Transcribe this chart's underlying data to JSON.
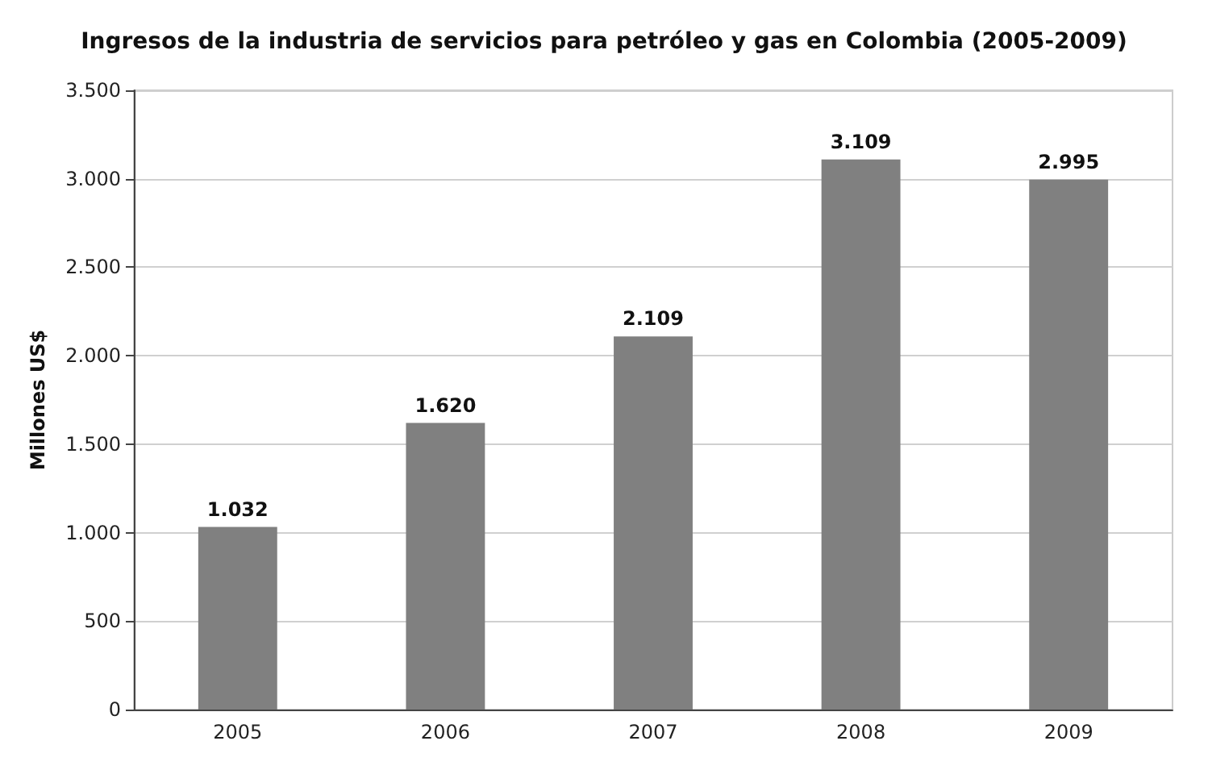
{
  "chart_data": {
    "type": "bar",
    "title": "Ingresos de la industria de servicios para petróleo y gas en Colombia (2005-2009)",
    "ylabel": "Millones US$",
    "categories": [
      "2005",
      "2006",
      "2007",
      "2008",
      "2009"
    ],
    "values": [
      1032,
      1620,
      2109,
      3109,
      2995
    ],
    "value_labels": [
      "1.032",
      "1.620",
      "2.109",
      "3.109",
      "2.995"
    ],
    "color": "#808080",
    "ylim": [
      0,
      3500
    ],
    "yticks": [
      {
        "value": 0,
        "label": "0"
      },
      {
        "value": 500,
        "label": "500"
      },
      {
        "value": 1000,
        "label": "1.000"
      },
      {
        "value": 1500,
        "label": "1.500"
      },
      {
        "value": 2000,
        "label": "2.000"
      },
      {
        "value": 2500,
        "label": "2.500"
      },
      {
        "value": 3000,
        "label": "3.000"
      },
      {
        "value": 3500,
        "label": "3.500"
      }
    ],
    "grid": "y"
  }
}
